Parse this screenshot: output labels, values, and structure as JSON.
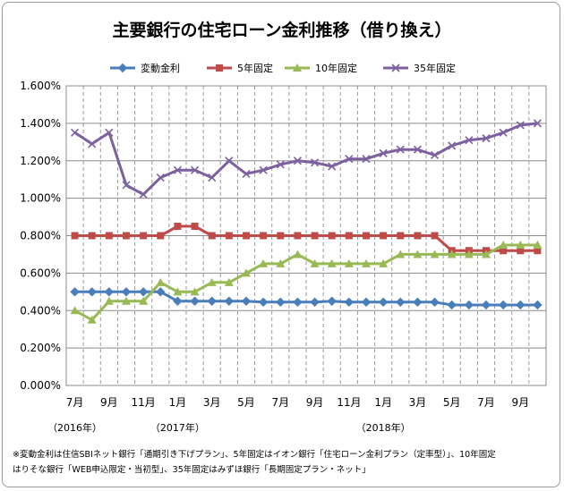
{
  "chart_data": {
    "type": "line",
    "title": "主要銀行の住宅ローン金利推移（借り換え）",
    "x": [
      "2016-07",
      "2016-08",
      "2016-09",
      "2016-10",
      "2016-11",
      "2016-12",
      "2017-01",
      "2017-02",
      "2017-03",
      "2017-04",
      "2017-05",
      "2017-06",
      "2017-07",
      "2017-08",
      "2017-09",
      "2017-10",
      "2017-11",
      "2017-12",
      "2018-01",
      "2018-02",
      "2018-03",
      "2018-04",
      "2018-05",
      "2018-06",
      "2018-07",
      "2018-08",
      "2018-09",
      "2018-10"
    ],
    "x_tick_labels": [
      "7月",
      "",
      "9月",
      "",
      "11月",
      "",
      "1月",
      "",
      "3月",
      "",
      "5月",
      "",
      "7月",
      "",
      "9月",
      "",
      "11月",
      "",
      "1月",
      "",
      "3月",
      "",
      "5月",
      "",
      "7月",
      "",
      "9月",
      ""
    ],
    "year_labels": [
      {
        "label": "（2016年）",
        "at_index": 0
      },
      {
        "label": "（2017年）",
        "at_index": 6
      },
      {
        "label": "（2018年）",
        "at_index": 18
      }
    ],
    "y_tick_labels": [
      "0.000%",
      "0.200%",
      "0.400%",
      "0.600%",
      "0.800%",
      "1.000%",
      "1.200%",
      "1.400%",
      "1.600%"
    ],
    "ylim": [
      0,
      1.6
    ],
    "y_step": 0.2,
    "grid": {
      "horizontal": true,
      "vertical": true,
      "vertical_style": "dashed"
    },
    "legend_position": "top",
    "series": [
      {
        "name": "変動金利",
        "color": "#4a7ebb",
        "marker": "diamond",
        "values": [
          0.5,
          0.5,
          0.5,
          0.5,
          0.5,
          0.5,
          0.45,
          0.45,
          0.45,
          0.45,
          0.45,
          0.445,
          0.445,
          0.445,
          0.445,
          0.45,
          0.445,
          0.445,
          0.445,
          0.445,
          0.445,
          0.445,
          0.43,
          0.43,
          0.43,
          0.43,
          0.43,
          0.43
        ]
      },
      {
        "name": "5年固定",
        "color": "#be4b48",
        "marker": "square",
        "values": [
          0.8,
          0.8,
          0.8,
          0.8,
          0.8,
          0.8,
          0.85,
          0.85,
          0.8,
          0.8,
          0.8,
          0.8,
          0.8,
          0.8,
          0.8,
          0.8,
          0.8,
          0.8,
          0.8,
          0.8,
          0.8,
          0.8,
          0.72,
          0.72,
          0.72,
          0.72,
          0.72,
          0.72
        ]
      },
      {
        "name": "10年固定",
        "color": "#98b954",
        "marker": "triangle",
        "values": [
          0.4,
          0.35,
          0.45,
          0.45,
          0.45,
          0.55,
          0.5,
          0.5,
          0.55,
          0.55,
          0.6,
          0.65,
          0.65,
          0.7,
          0.65,
          0.65,
          0.65,
          0.65,
          0.65,
          0.7,
          0.7,
          0.7,
          0.7,
          0.7,
          0.7,
          0.75,
          0.75,
          0.75
        ]
      },
      {
        "name": "35年固定",
        "color": "#7d60a0",
        "marker": "x",
        "values": [
          1.35,
          1.29,
          1.35,
          1.07,
          1.02,
          1.11,
          1.15,
          1.15,
          1.11,
          1.2,
          1.13,
          1.15,
          1.18,
          1.2,
          1.19,
          1.17,
          1.21,
          1.21,
          1.24,
          1.26,
          1.26,
          1.23,
          1.28,
          1.31,
          1.32,
          1.35,
          1.39,
          1.4
        ]
      }
    ]
  },
  "footnote": {
    "line1": "※変動金利は住信SBIネット銀行「通期引き下げプラン」、5年固定はイオン銀行「住宅ローン金利プラン（定率型）」、10年固定",
    "line2": "はりそな銀行「WEB申込限定・当初型」、35年固定はみずほ銀行「長期固定プラン・ネット」"
  }
}
